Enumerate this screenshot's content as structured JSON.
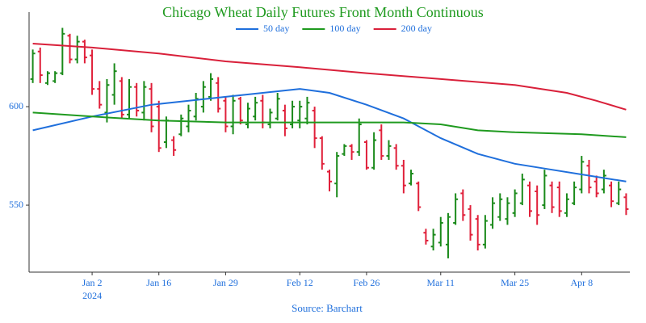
{
  "chart_data": {
    "type": "ohlc",
    "title": "Chicago Wheat Daily Futures Front Month Continuous",
    "source": "Source: Barchart",
    "xlim": [
      -0.5,
      80.5
    ],
    "xticks": [
      {
        "value": 8,
        "label": "Jan 2"
      },
      {
        "value": 17,
        "label": "Jan 16"
      },
      {
        "value": 26,
        "label": "Jan 29"
      },
      {
        "value": 36,
        "label": "Feb 12"
      },
      {
        "value": 45,
        "label": "Feb 26"
      },
      {
        "value": 55,
        "label": "Mar 11"
      },
      {
        "value": 65,
        "label": "Mar 25"
      },
      {
        "value": 74,
        "label": "Apr 8"
      }
    ],
    "x_sublabel": "2024",
    "ylim": [
      516,
      648
    ],
    "yticks": [
      550,
      600
    ],
    "increasing_color": "#1a8a1a",
    "decreasing_color": "#e0203a",
    "open": [
      614,
      628,
      612,
      613,
      617,
      636,
      624,
      633,
      626,
      609,
      597,
      606,
      613,
      596,
      610,
      597,
      609,
      600,
      582,
      583,
      586,
      590,
      595,
      600,
      605,
      612,
      603,
      590,
      604,
      591,
      595,
      603,
      591,
      594,
      598,
      591,
      593,
      594,
      598,
      584,
      567,
      561,
      576,
      580,
      577,
      582,
      569,
      588,
      575,
      579,
      570,
      561,
      561,
      536,
      529,
      531,
      530,
      541,
      556,
      548,
      543,
      530,
      540,
      544,
      543,
      546,
      551,
      560,
      557,
      550,
      560,
      559,
      546,
      551,
      558,
      570,
      562,
      558,
      560,
      551,
      554
    ],
    "high": [
      629,
      630,
      618,
      618,
      640,
      637,
      636,
      634,
      629,
      613,
      614,
      622,
      615,
      614,
      612,
      613,
      612,
      603,
      595,
      585,
      596,
      601,
      607,
      613,
      617,
      615,
      605,
      606,
      605,
      602,
      605,
      606,
      599,
      607,
      601,
      603,
      603,
      605,
      600,
      585,
      568,
      577,
      581,
      581,
      594,
      583,
      587,
      591,
      583,
      581,
      573,
      568,
      562,
      538,
      538,
      544,
      546,
      556,
      558,
      550,
      545,
      545,
      554,
      556,
      554,
      558,
      566,
      562,
      560,
      568,
      562,
      562,
      556,
      562,
      575,
      573,
      565,
      568,
      562,
      562,
      556
    ],
    "low": [
      612,
      612,
      611,
      612,
      616,
      622,
      622,
      622,
      606,
      599,
      592,
      601,
      594,
      594,
      595,
      593,
      587,
      577,
      579,
      575,
      585,
      587,
      593,
      597,
      603,
      597,
      587,
      586,
      591,
      589,
      593,
      589,
      589,
      593,
      585,
      589,
      589,
      591,
      579,
      568,
      557,
      554,
      575,
      573,
      575,
      568,
      568,
      573,
      573,
      568,
      556,
      560,
      547,
      530,
      527,
      529,
      523,
      540,
      542,
      532,
      527,
      528,
      538,
      542,
      540,
      544,
      550,
      544,
      540,
      548,
      546,
      544,
      544,
      550,
      556,
      556,
      554,
      556,
      549,
      550,
      545
    ],
    "close": [
      627,
      616,
      617,
      617,
      637,
      624,
      633,
      625,
      609,
      601,
      611,
      618,
      596,
      610,
      598,
      610,
      590,
      579,
      593,
      578,
      594,
      598,
      604,
      610,
      614,
      599,
      590,
      603,
      593,
      599,
      602,
      592,
      597,
      604,
      589,
      600,
      600,
      602,
      584,
      571,
      562,
      575,
      580,
      577,
      591,
      569,
      583,
      575,
      580,
      570,
      560,
      566,
      549,
      532,
      535,
      541,
      544,
      553,
      545,
      535,
      530,
      542,
      551,
      553,
      551,
      556,
      563,
      547,
      545,
      565,
      549,
      547,
      553,
      559,
      572,
      559,
      556,
      565,
      552,
      558,
      548
    ],
    "series": [
      {
        "name": "50 day",
        "color": "#1f6fdc",
        "x": [
          0,
          8,
          16,
          26,
          36,
          40,
          45,
          50,
          55,
          60,
          65,
          70,
          75,
          80
        ],
        "values": [
          588,
          595,
          601,
          605,
          609,
          607,
          601,
          594,
          584,
          576,
          571,
          568,
          565,
          562
        ]
      },
      {
        "name": "100 day",
        "color": "#1f9a1f",
        "x": [
          0,
          8,
          17,
          26,
          45,
          50,
          55,
          60,
          65,
          74,
          80
        ],
        "values": [
          597,
          595,
          593,
          592,
          592,
          592,
          591,
          588,
          587,
          586,
          584.5
        ]
      },
      {
        "name": "200 day",
        "color": "#d9203a",
        "x": [
          0,
          8,
          17,
          26,
          36,
          45,
          55,
          65,
          72,
          76,
          80
        ],
        "values": [
          632,
          630,
          627,
          623,
          620,
          617,
          614,
          611,
          607,
          603,
          598.5
        ]
      }
    ]
  }
}
